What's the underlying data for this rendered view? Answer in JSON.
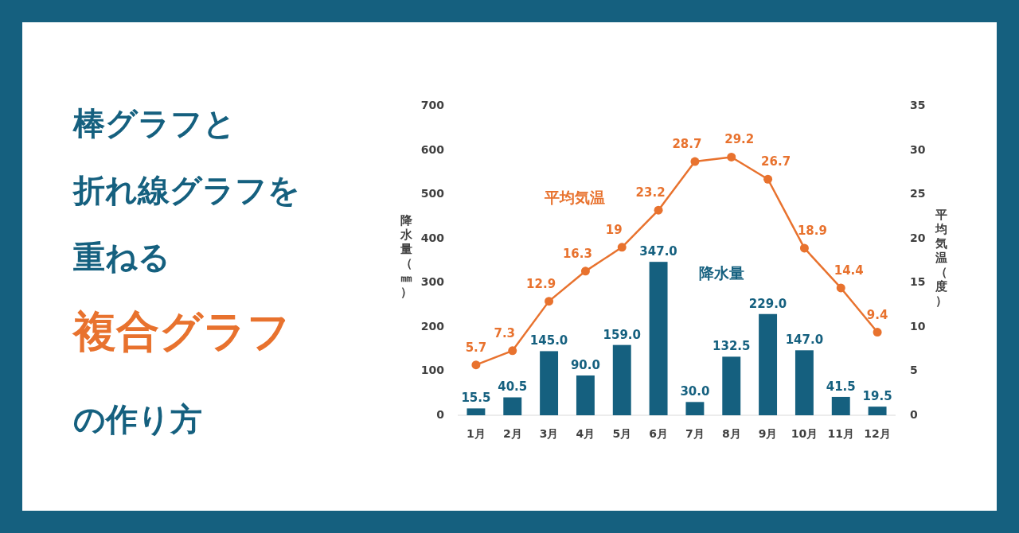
{
  "chart_data": {
    "type": "bar",
    "title": "棒グラフと折れ線グラフを重ねる複合グラフの作り方",
    "categories": [
      "1月",
      "2月",
      "3月",
      "4月",
      "5月",
      "6月",
      "7月",
      "8月",
      "9月",
      "10月",
      "11月",
      "12月"
    ],
    "series": [
      {
        "name": "降水量",
        "color": "#15607f",
        "values": [
          15.5,
          40.5,
          145.0,
          90.0,
          159.0,
          347.0,
          30.0,
          132.5,
          229.0,
          147.0,
          41.5,
          19.5
        ],
        "value_labels": [
          "15.5",
          "40.5",
          "145.0",
          "90.0",
          "159.0",
          "347.0",
          "30.0",
          "132.5",
          "229.0",
          "147.0",
          "41.5",
          "19.5"
        ]
      },
      {
        "name": "平均気温",
        "type": "line",
        "axis": "y2",
        "color": "#e8722e",
        "marker": "circle",
        "values": [
          5.7,
          7.3,
          12.9,
          16.3,
          19,
          23.2,
          28.7,
          29.2,
          26.7,
          18.9,
          14.4,
          9.4
        ],
        "value_labels": [
          "5.7",
          "7.3",
          "12.9",
          "16.3",
          "19",
          "23.2",
          "28.7",
          "29.2",
          "26.7",
          "18.9",
          "14.4",
          "9.4"
        ]
      }
    ],
    "ylabel": "降水量（㎜）",
    "y2label": "平均気温（度）",
    "ylim": [
      0,
      700
    ],
    "yticks": [
      0,
      100,
      200,
      300,
      400,
      500,
      600,
      700
    ],
    "y2lim": [
      0,
      35
    ],
    "y2ticks": [
      0,
      5,
      10,
      15,
      20,
      25,
      30,
      35
    ],
    "grid": false,
    "legend": false
  }
}
